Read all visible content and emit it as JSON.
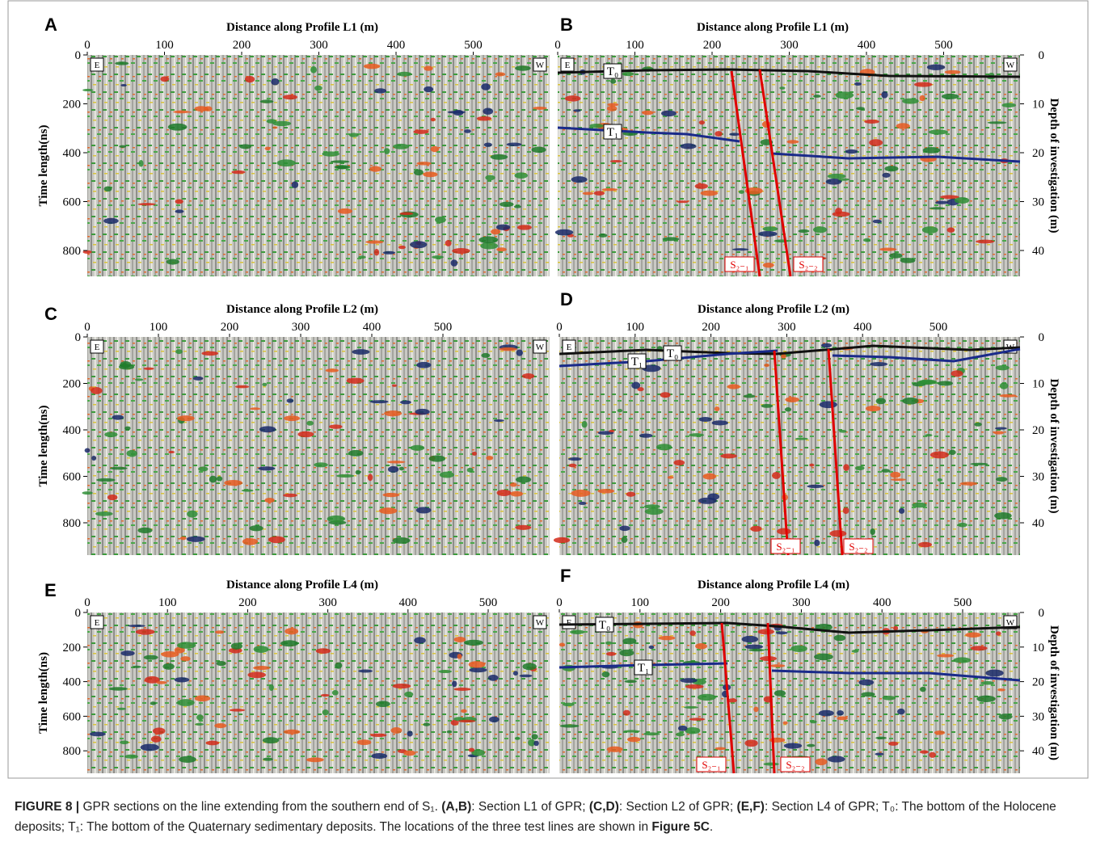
{
  "panels": [
    {
      "letter": "A",
      "x_title": "Distance along Profile L1 (m)",
      "xticks": [
        0,
        100,
        200,
        300,
        400,
        500
      ],
      "y_title": "Time length(ns)",
      "yticks": [
        0,
        200,
        400,
        600,
        800
      ],
      "ends": [
        "E",
        "W"
      ]
    },
    {
      "letter": "B",
      "x_title": "Distance along Profile L1 (m)",
      "xticks": [
        0,
        100,
        200,
        300,
        400,
        500
      ],
      "y2_title": "Depth of investigation (m)",
      "y2ticks": [
        0,
        10,
        20,
        30,
        40
      ],
      "ends": [
        "E",
        "W"
      ],
      "marks": [
        "T₀",
        "T₁",
        "S₂₋₁",
        "S₂₋₂"
      ]
    },
    {
      "letter": "C",
      "x_title": "Distance along Profile L2 (m)",
      "xticks": [
        0,
        100,
        200,
        300,
        400,
        500
      ],
      "y_title": "Time length(ns)",
      "yticks": [
        0,
        200,
        400,
        600,
        800
      ],
      "ends": [
        "E",
        "W"
      ]
    },
    {
      "letter": "D",
      "x_title": "Distance along Profile L2 (m)",
      "xticks": [
        0,
        100,
        200,
        300,
        400,
        500
      ],
      "y2_title": "Depth of investigation (m)",
      "y2ticks": [
        0,
        10,
        20,
        30,
        40
      ],
      "ends": [
        "E",
        "W"
      ],
      "marks": [
        "T₀",
        "T₁",
        "S₂₋₁",
        "S₂₋₂"
      ]
    },
    {
      "letter": "E",
      "x_title": "Distance along Profile L4 (m)",
      "xticks": [
        0,
        100,
        200,
        300,
        400,
        500
      ],
      "y_title": "Time length(ns)",
      "yticks": [
        0,
        200,
        400,
        600,
        800
      ],
      "ends": [
        "E",
        "W"
      ]
    },
    {
      "letter": "F",
      "x_title": "Distance along Profile L4 (m)",
      "xticks": [
        0,
        100,
        200,
        300,
        400,
        500
      ],
      "y2_title": "Depth of investigation (m)",
      "y2ticks": [
        0,
        10,
        20,
        30,
        40
      ],
      "ends": [
        "E",
        "W"
      ],
      "marks": [
        "T₀",
        "T₁",
        "S₂₋₁",
        "S₂₋₂"
      ]
    }
  ],
  "caption": [
    "FIGURE 8 |",
    " GPR sections on the line extending from the southern end of S₁. ",
    "(A,B)",
    ": Section L1 of GPR; ",
    "(C,D)",
    ": Section L2 of GPR; ",
    "(E,F)",
    ": Section L4 of GPR; T₀: The bottom of the Holocene deposits; T₁: The bottom of the Quaternary sedimentary deposits. The locations of the three test lines are shown in ",
    "Figure 5C",
    "."
  ]
}
